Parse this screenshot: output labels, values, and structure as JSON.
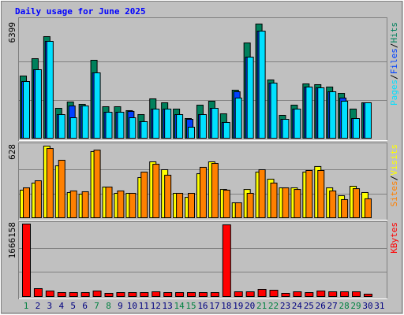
{
  "chart_data": {
    "type": "bar",
    "title": "Daily usage for June 2025",
    "categories": [
      "1",
      "2",
      "3",
      "4",
      "5",
      "6",
      "7",
      "8",
      "9",
      "10",
      "11",
      "12",
      "13",
      "14",
      "15",
      "16",
      "17",
      "18",
      "19",
      "20",
      "21",
      "22",
      "23",
      "24",
      "25",
      "26",
      "27",
      "28",
      "29",
      "30",
      "31"
    ],
    "category_colors": [
      "#008040",
      "#000080",
      "#000080",
      "#000080",
      "#000080",
      "#000080",
      "#008040",
      "#008040",
      "#000080",
      "#000080",
      "#000080",
      "#000080",
      "#000080",
      "#008040",
      "#008040",
      "#000080",
      "#000080",
      "#000080",
      "#000080",
      "#000080",
      "#008040",
      "#008040",
      "#000080",
      "#000080",
      "#000080",
      "#000080",
      "#000080",
      "#008040",
      "#008040",
      "#000080",
      "#000080"
    ],
    "legend_separator": "/",
    "grid": true,
    "panels": [
      {
        "ylim": [
          0,
          6399
        ],
        "yticks": [
          {
            "value": 2133,
            "label": null
          },
          {
            "value": 4266,
            "label": null
          },
          6399
        ],
        "series": [
          {
            "name": "Hits",
            "color": "#00805c",
            "values": [
              3486,
              4457,
              5693,
              1677,
              2030,
              1898,
              4369,
              1765,
              1765,
              1545,
              1324,
              2207,
              1986,
              1633,
              1103,
              1853,
              2074,
              1368,
              2692,
              5340,
              6399,
              3266,
              1280,
              1853,
              3045,
              3001,
              2868,
              2515,
              1633,
              1986,
              0
            ]
          },
          {
            "name": "Files",
            "color": "#0040ff",
            "values": [
              3177,
              3839,
              5428,
              1324,
              1809,
              1809,
              3663,
              1456,
              1456,
              1500,
              927,
              1633,
              1633,
              1324,
              1059,
              1324,
              1677,
              883,
              2604,
              4545,
              6002,
              3089,
              1059,
              1633,
              2868,
              2824,
              2604,
              2251,
              1103,
              1986,
              0
            ]
          },
          {
            "name": "Pages",
            "color": "#00e0ff",
            "values": [
              3177,
              3839,
              5428,
              1324,
              1147,
              1809,
              3663,
              1456,
              1456,
              1147,
              927,
              1633,
              1633,
              1324,
              618,
              1324,
              1677,
              883,
              2251,
              4545,
              6002,
              3089,
              1059,
              1633,
              2868,
              2824,
              2604,
              2074,
              1103,
              1986,
              0
            ]
          }
        ]
      },
      {
        "ylim": [
          0,
          628
        ],
        "yticks": [
          {
            "value": 209,
            "label": null
          },
          {
            "value": 419,
            "label": null
          },
          628
        ],
        "series": [
          {
            "name": "Visits",
            "color": "#ffff00",
            "values": [
              242,
              304,
              628,
              455,
              221,
              207,
              580,
              269,
              214,
              214,
              352,
              490,
              421,
              214,
              179,
              386,
              490,
              248,
              131,
              248,
              400,
              338,
              262,
              262,
              400,
              449,
              262,
              193,
              276,
              221,
              0
            ]
          },
          {
            "name": "Sites",
            "color": "#ff8000",
            "values": [
              262,
              324,
              607,
              504,
              235,
              228,
              593,
              269,
              235,
              214,
              400,
              469,
              373,
              214,
              214,
              442,
              476,
              242,
              131,
              214,
              421,
              304,
              262,
              248,
              414,
              414,
              235,
              159,
              255,
              166,
              0
            ]
          }
        ]
      },
      {
        "ylim": [
          0,
          1666158
        ],
        "yticks": [
          {
            "value": 555386,
            "label": null
          },
          {
            "value": 1110772,
            "label": null
          },
          1666158
        ],
        "series": [
          {
            "name": "KBytes",
            "color": "#ff0000",
            "values": [
              1666158,
              181101,
              126771,
              90550,
              90550,
              90550,
              126771,
              72440,
              90550,
              90550,
              90550,
              108660,
              90550,
              90550,
              90550,
              90550,
              90550,
              1648047,
              108660,
              108660,
              162991,
              144881,
              72440,
              108660,
              90550,
              126771,
              108660,
              108660,
              108660,
              54330,
              0
            ]
          }
        ]
      }
    ]
  }
}
